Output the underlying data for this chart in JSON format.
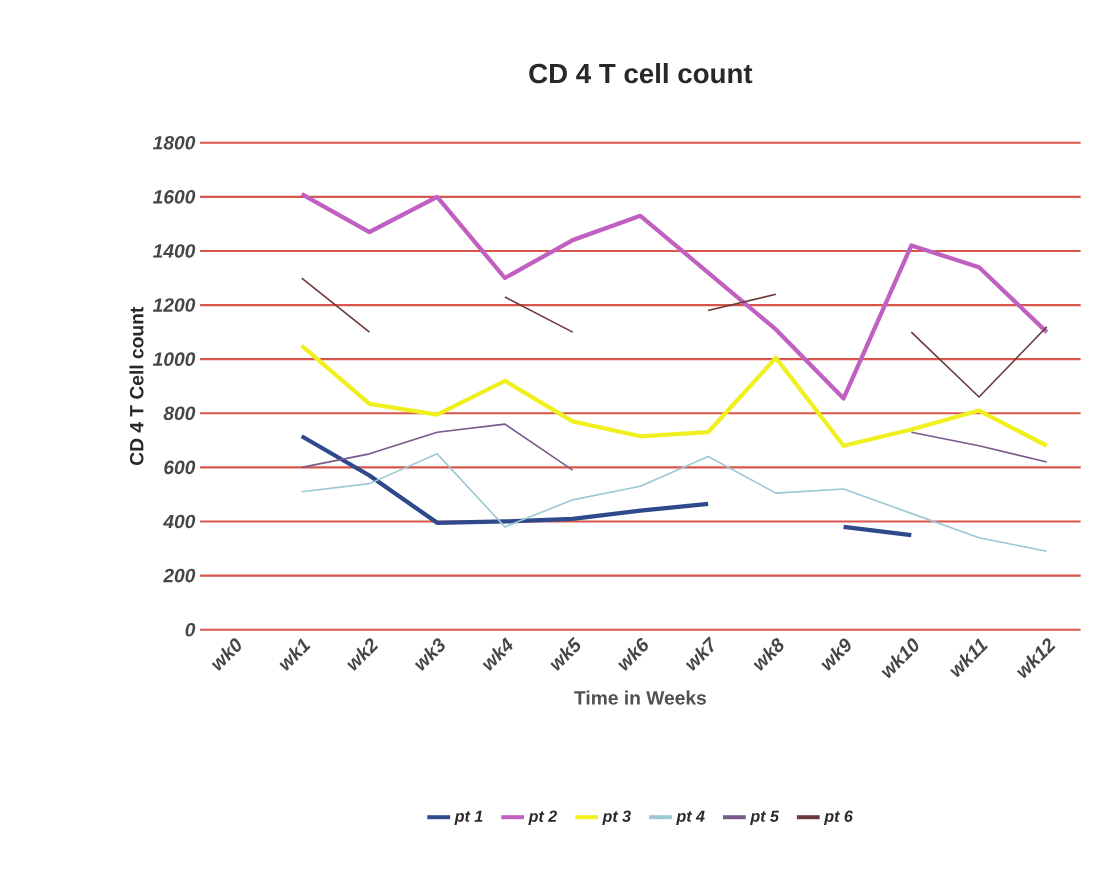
{
  "chart_data": {
    "type": "line",
    "title": "CD 4 T cell count",
    "xlabel": "Time in Weeks",
    "ylabel": "CD 4 T Cell count",
    "categories": [
      "wk0",
      "wk1",
      "wk2",
      "wk3",
      "wk4",
      "wk5",
      "wk6",
      "wk7",
      "wk8",
      "wk9",
      "wk10",
      "wk11",
      "wk12"
    ],
    "series": [
      {
        "name": "pt  1",
        "color": "#2e4a8c",
        "values": [
          null,
          715,
          570,
          395,
          400,
          410,
          440,
          465,
          null,
          380,
          350,
          null,
          null
        ]
      },
      {
        "name": "pt  2",
        "color": "#c060c0",
        "values": [
          null,
          1610,
          1470,
          1600,
          1300,
          1440,
          1530,
          1320,
          1110,
          855,
          1420,
          1340,
          1100
        ]
      },
      {
        "name": "pt  3",
        "color": "#f0f020",
        "values": [
          null,
          1050,
          835,
          795,
          920,
          770,
          715,
          730,
          1005,
          680,
          740,
          810,
          680
        ]
      },
      {
        "name": "pt  4",
        "color": "#9cc8d4",
        "values": [
          null,
          510,
          540,
          650,
          380,
          480,
          530,
          640,
          505,
          520,
          430,
          340,
          290
        ]
      },
      {
        "name": "pt  5",
        "color": "#7a5a8a",
        "values": [
          null,
          600,
          650,
          730,
          760,
          590,
          null,
          null,
          null,
          null,
          730,
          680,
          620
        ]
      },
      {
        "name": "pt  6",
        "color": "#6a3a3a",
        "values": [
          null,
          1300,
          1100,
          null,
          1230,
          1100,
          null,
          1180,
          1240,
          null,
          1100,
          860,
          1120
        ]
      }
    ],
    "ylim": [
      0,
      1800
    ],
    "yticks": [
      0,
      200,
      400,
      600,
      800,
      1000,
      1200,
      1400,
      1600,
      1800
    ],
    "grid": "y",
    "legend": "bottom",
    "line_style": "solid",
    "marker": "none"
  }
}
